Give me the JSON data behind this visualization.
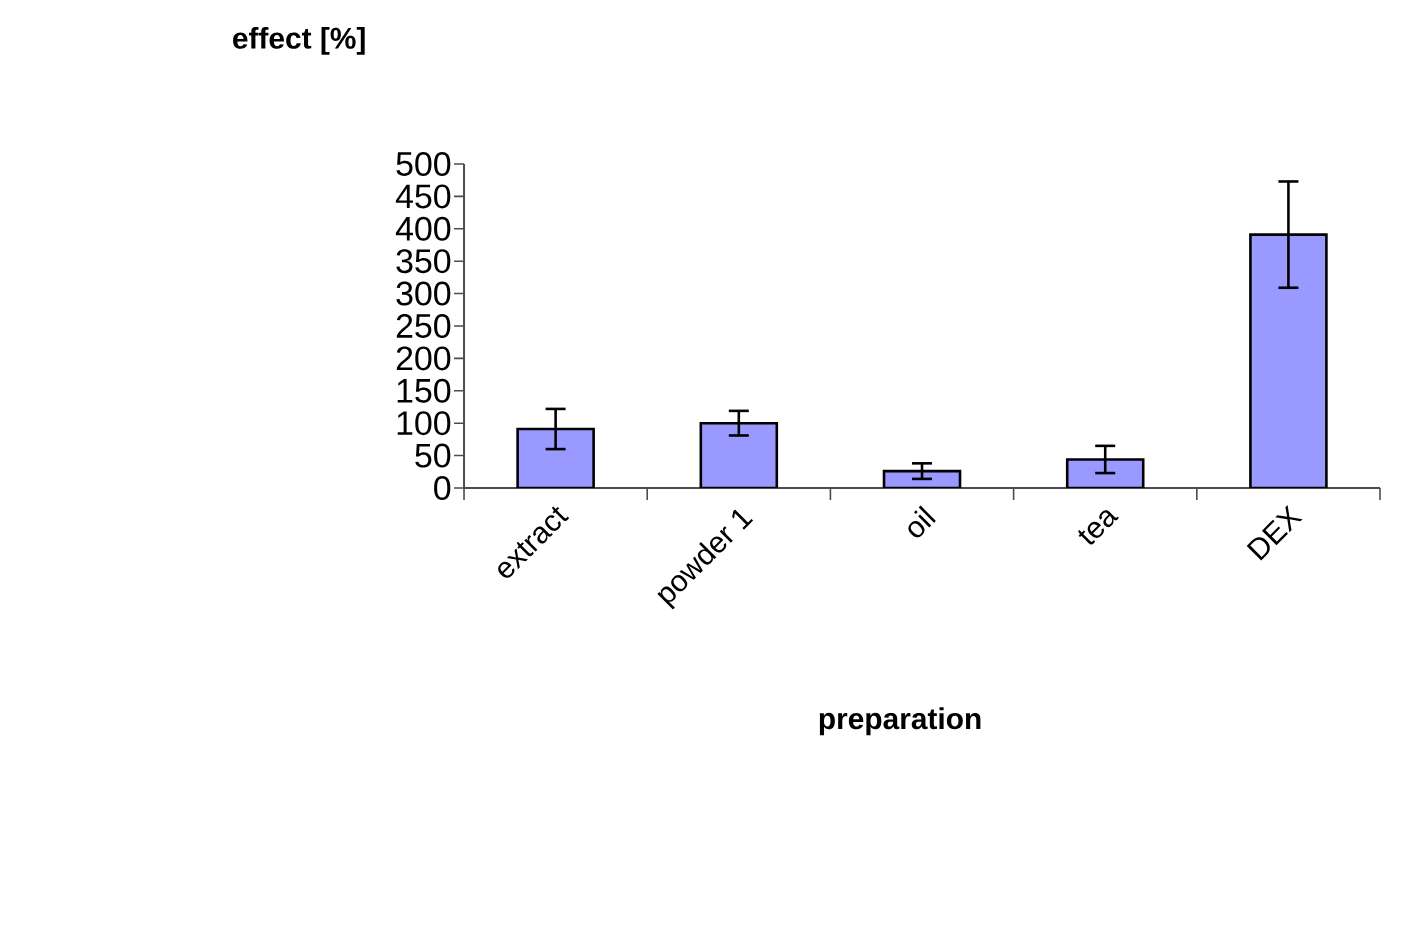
{
  "chart_data": {
    "type": "bar",
    "ylabel": "effect [%]",
    "xlabel": "preparation",
    "categories": [
      "extract",
      "powder 1",
      "oil",
      "tea",
      "DEX"
    ],
    "values": [
      91,
      100,
      26,
      44,
      391
    ],
    "errors": [
      31,
      19,
      12,
      21,
      82
    ],
    "color": "#9999ff",
    "ylim": [
      0,
      500
    ],
    "yticks": [
      0,
      50,
      100,
      150,
      200,
      250,
      300,
      350,
      400,
      450,
      500
    ],
    "grid": false
  }
}
